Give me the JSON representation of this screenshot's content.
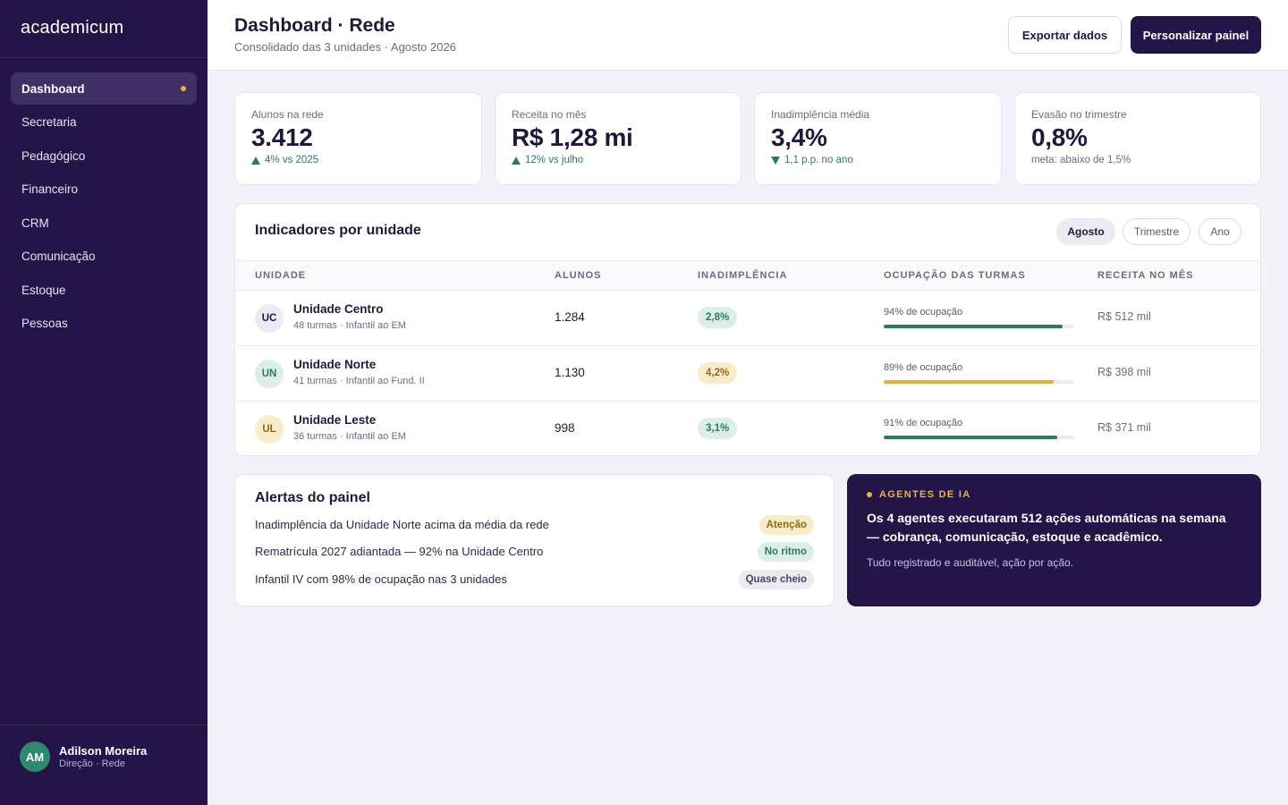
{
  "sidebar": {
    "logo": "academicum",
    "items": [
      {
        "label": "Dashboard"
      },
      {
        "label": "Secretaria"
      },
      {
        "label": "Pedagógico"
      },
      {
        "label": "Financeiro"
      },
      {
        "label": "CRM"
      },
      {
        "label": "Comunicação"
      },
      {
        "label": "Estoque"
      },
      {
        "label": "Pessoas"
      }
    ],
    "active_index": 0,
    "user": {
      "initials": "AM",
      "name": "Adilson Moreira",
      "role": "Direção · Rede"
    }
  },
  "header": {
    "title": "Dashboard · Rede",
    "subtitle": "Consolidado das 3 unidades · Agosto 2026",
    "export_label": "Exportar dados",
    "customize_label": "Personalizar painel"
  },
  "kpis": [
    {
      "label": "Alunos na rede",
      "value": "3.412",
      "delta": "4% vs 2025",
      "trend": "up"
    },
    {
      "label": "Receita no mês",
      "value": "R$ 1,28 mi",
      "delta": "12% vs julho",
      "trend": "up"
    },
    {
      "label": "Inadimplência média",
      "value": "3,4%",
      "delta": "1,1 p.p. no ano",
      "trend": "down"
    },
    {
      "label": "Evasão no trimestre",
      "value": "0,8%",
      "delta": "meta: abaixo de 1,5%",
      "trend": "none"
    }
  ],
  "units": {
    "title": "Indicadores por unidade",
    "periods": [
      "Agosto",
      "Trimestre",
      "Ano"
    ],
    "active_period": 0,
    "columns": [
      "UNIDADE",
      "ALUNOS",
      "INADIMPLÊNCIA",
      "OCUPAÇÃO DAS TURMAS",
      "RECEITA NO MÊS"
    ],
    "rows": [
      {
        "initials": "UC",
        "name": "Unidade Centro",
        "detail": "48 turmas · Infantil ao EM",
        "students": "1.284",
        "delinquency": "2,8%",
        "delinquency_status": "good",
        "occupancy_label": "94% de ocupação",
        "occupancy": 0.94,
        "occupancy_color": "#2b7a62",
        "revenue": "R$ 512 mil",
        "avatar_bg": "#ecebf3",
        "avatar_fg": "#1f1a3a"
      },
      {
        "initials": "UN",
        "name": "Unidade Norte",
        "detail": "41 turmas · Infantil ao Fund. II",
        "students": "1.130",
        "delinquency": "4,2%",
        "delinquency_status": "warn",
        "occupancy_label": "89% de ocupação",
        "occupancy": 0.89,
        "occupancy_color": "#e0b13a",
        "revenue": "R$ 398 mil",
        "avatar_bg": "#dcefe7",
        "avatar_fg": "#2b7a62"
      },
      {
        "initials": "UL",
        "name": "Unidade Leste",
        "detail": "36 turmas · Infantil ao EM",
        "students": "998",
        "delinquency": "3,1%",
        "delinquency_status": "good",
        "occupancy_label": "91% de ocupação",
        "occupancy": 0.91,
        "occupancy_color": "#2b7a62",
        "revenue": "R$ 371 mil",
        "avatar_bg": "#f8eccb",
        "avatar_fg": "#8a6a12"
      }
    ]
  },
  "alerts": {
    "title": "Alertas do painel",
    "items": [
      {
        "text": "Inadimplência da Unidade Norte acima da média da rede",
        "tag": "Atenção",
        "status": "warn"
      },
      {
        "text": "Rematrícula 2027 adiantada — 92% na Unidade Centro",
        "tag": "No ritmo",
        "status": "good"
      },
      {
        "text": "Infantil IV com 98% de ocupação nas 3 unidades",
        "tag": "Quase cheio",
        "status": "neutral"
      }
    ]
  },
  "ai": {
    "eyebrow": "AGENTES DE IA",
    "headline": "Os 4 agentes executaram 512 ações automáticas na semana — cobrança, comunicação, estoque e acadêmico.",
    "sub": "Tudo registrado e auditável, ação por ação."
  },
  "colors": {
    "sidebar_bg": "#241548",
    "accent_gold": "#e8b634",
    "positive_green": "#2b7a62"
  }
}
